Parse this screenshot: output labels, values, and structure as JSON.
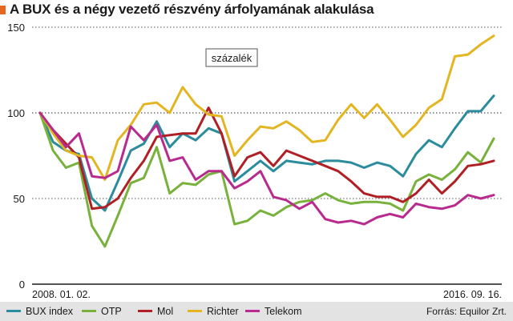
{
  "title": "A BUX és a négy vezető részvény árfolyamának alakulása",
  "colors": {
    "accent": "#e4681e",
    "grid": "#555555",
    "axis": "#1a1a1a"
  },
  "source": "Forrás: Equilor Zrt.",
  "chart_data": {
    "type": "line",
    "annotation": "százalék",
    "x_start_label": "2008. 01. 02.",
    "x_end_label": "2016. 09. 16.",
    "yticks": [
      0,
      50,
      100,
      150
    ],
    "ylim": [
      0,
      150
    ],
    "grid": true,
    "legend_position": "bottom",
    "series": [
      {
        "name": "BUX index",
        "color": "#2a8c9c",
        "values": [
          100,
          83,
          78,
          76,
          50,
          43,
          60,
          78,
          82,
          95,
          80,
          88,
          84,
          91,
          88,
          60,
          66,
          72,
          66,
          72,
          71,
          70,
          72,
          72,
          71,
          68,
          71,
          69,
          63,
          76,
          84,
          80,
          91,
          101,
          101,
          110
        ]
      },
      {
        "name": "OTP",
        "color": "#78b13c",
        "values": [
          100,
          78,
          68,
          71,
          34,
          22,
          40,
          59,
          62,
          80,
          53,
          59,
          58,
          64,
          66,
          35,
          37,
          43,
          40,
          45,
          48,
          49,
          53,
          49,
          47,
          48,
          48,
          47,
          43,
          60,
          64,
          61,
          67,
          77,
          71,
          85
        ]
      },
      {
        "name": "Mol",
        "color": "#b01f24",
        "values": [
          100,
          90,
          82,
          74,
          44,
          45,
          50,
          62,
          72,
          86,
          87,
          88,
          88,
          103,
          88,
          63,
          74,
          77,
          69,
          78,
          75,
          72,
          69,
          66,
          60,
          53,
          51,
          51,
          48,
          53,
          61,
          53,
          60,
          69,
          70,
          72
        ]
      },
      {
        "name": "Richter",
        "color": "#e2b521",
        "values": [
          100,
          88,
          78,
          75,
          74,
          61,
          84,
          93,
          105,
          106,
          100,
          115,
          105,
          99,
          98,
          75,
          84,
          92,
          91,
          95,
          90,
          83,
          84,
          96,
          105,
          97,
          105,
          96,
          86,
          93,
          103,
          108,
          133,
          134,
          140,
          145
        ]
      },
      {
        "name": "Telekom",
        "color": "#b82a8e",
        "values": [
          100,
          90,
          80,
          88,
          63,
          62,
          66,
          92,
          84,
          93,
          72,
          74,
          61,
          66,
          66,
          56,
          60,
          66,
          51,
          49,
          44,
          48,
          38,
          36,
          37,
          35,
          39,
          41,
          39,
          47,
          45,
          44,
          46,
          52,
          50,
          52
        ]
      }
    ]
  }
}
